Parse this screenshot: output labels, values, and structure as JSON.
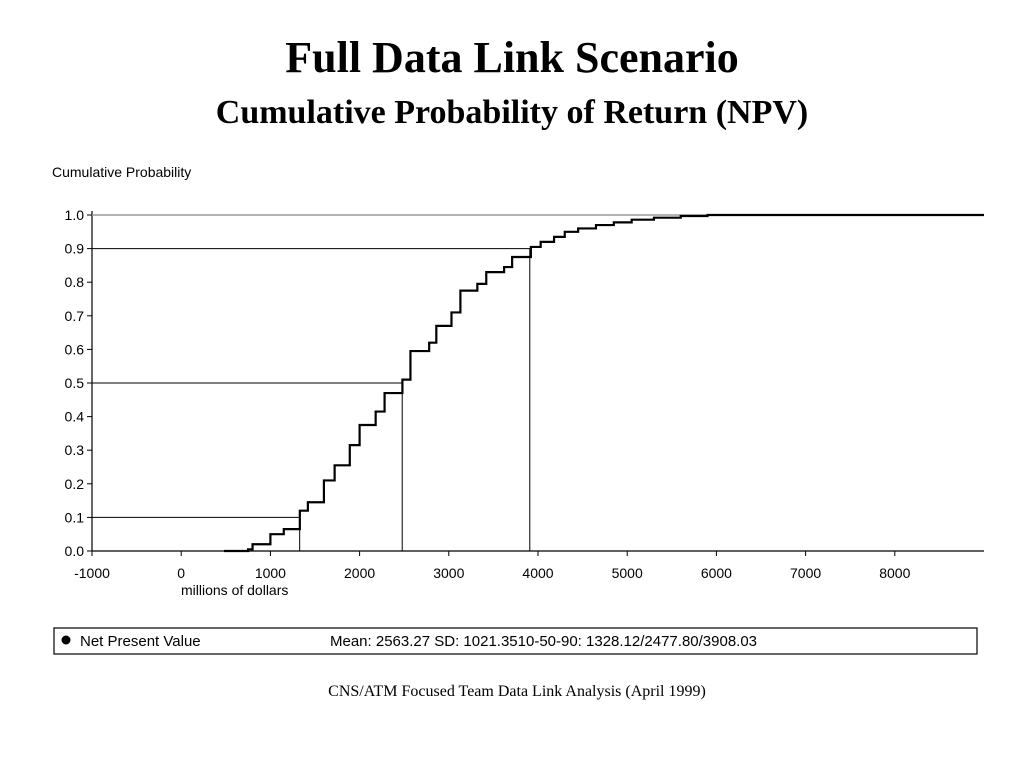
{
  "slide": {
    "title": "Full Data Link Scenario",
    "subtitle": "Cumulative Probability of Return (NPV)",
    "footer": "CNS/ATM Focused Team Data Link Analysis (April 1999)"
  },
  "legend": {
    "marker_icon": "filled-circle-icon",
    "series_label": "Net Present Value",
    "stats_text": "Mean: 2563.27 SD: 1021.3510-50-90: 1328.12/2477.80/3908.03"
  },
  "chart_data": {
    "type": "line",
    "title": "",
    "ylabel": "Cumulative Probability",
    "xlabel": "millions of dollars",
    "xlim": [
      -1000,
      9000
    ],
    "ylim": [
      0,
      1.0
    ],
    "x_ticks": [
      -1000,
      0,
      1000,
      2000,
      3000,
      4000,
      5000,
      6000,
      7000,
      8000
    ],
    "y_ticks": [
      0.0,
      0.1,
      0.2,
      0.3,
      0.4,
      0.5,
      0.6,
      0.7,
      0.8,
      0.9,
      1.0
    ],
    "y_tick_labels": [
      "0.0",
      "0.1",
      "0.2",
      "0.3",
      "0.4",
      "0.5",
      "0.6",
      "0.7",
      "0.8",
      "0.9",
      "1.0"
    ],
    "grid": false,
    "series": [
      {
        "name": "Net Present Value",
        "color": "#000000",
        "step": true,
        "points": [
          [
            480,
            0.0
          ],
          [
            750,
            0.005
          ],
          [
            800,
            0.02
          ],
          [
            1000,
            0.05
          ],
          [
            1150,
            0.065
          ],
          [
            1330,
            0.12
          ],
          [
            1420,
            0.145
          ],
          [
            1600,
            0.21
          ],
          [
            1720,
            0.255
          ],
          [
            1890,
            0.315
          ],
          [
            2000,
            0.375
          ],
          [
            2180,
            0.415
          ],
          [
            2280,
            0.47
          ],
          [
            2480,
            0.51
          ],
          [
            2570,
            0.595
          ],
          [
            2780,
            0.62
          ],
          [
            2860,
            0.67
          ],
          [
            3030,
            0.71
          ],
          [
            3130,
            0.775
          ],
          [
            3320,
            0.795
          ],
          [
            3420,
            0.83
          ],
          [
            3620,
            0.845
          ],
          [
            3710,
            0.875
          ],
          [
            3920,
            0.905
          ],
          [
            4030,
            0.92
          ],
          [
            4180,
            0.935
          ],
          [
            4300,
            0.95
          ],
          [
            4450,
            0.96
          ],
          [
            4650,
            0.97
          ],
          [
            4850,
            0.978
          ],
          [
            5050,
            0.986
          ],
          [
            5300,
            0.992
          ],
          [
            5600,
            0.997
          ],
          [
            5900,
            1.0
          ],
          [
            9000,
            1.0
          ]
        ]
      }
    ],
    "reference_lines": [
      {
        "probability": 0.1,
        "value": 1328.12
      },
      {
        "probability": 0.5,
        "value": 2477.8
      },
      {
        "probability": 0.9,
        "value": 3908.03
      }
    ],
    "top_line_color": "#999999"
  }
}
